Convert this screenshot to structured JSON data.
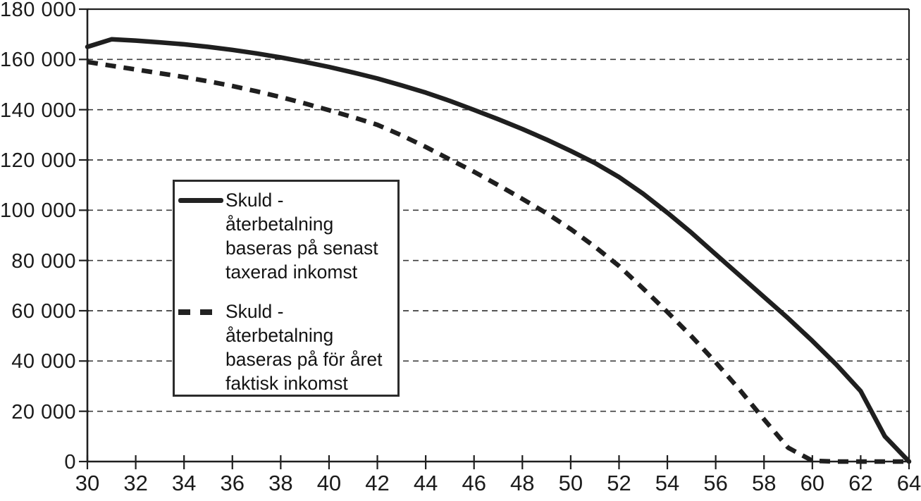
{
  "chart_data": {
    "type": "line",
    "title": "",
    "xlabel": "",
    "ylabel": "",
    "xlim": [
      30,
      64
    ],
    "ylim": [
      0,
      180000
    ],
    "x": [
      30,
      31,
      32,
      33,
      34,
      35,
      36,
      37,
      38,
      39,
      40,
      41,
      42,
      43,
      44,
      45,
      46,
      47,
      48,
      49,
      50,
      51,
      52,
      53,
      54,
      55,
      56,
      57,
      58,
      59,
      60,
      61,
      62,
      63,
      64
    ],
    "series": [
      {
        "name": "Skuld - återbetalning baseras på senast taxerad inkomst",
        "line_style": "solid",
        "color": "#1f1f1f",
        "values": [
          165000,
          168000,
          167500,
          166800,
          166000,
          165000,
          163800,
          162400,
          160800,
          159000,
          157000,
          154800,
          152400,
          149700,
          146800,
          143500,
          139900,
          136200,
          132300,
          128100,
          123600,
          118800,
          113200,
          106500,
          99000,
          91000,
          82500,
          74000,
          65500,
          57000,
          48000,
          38500,
          28000,
          10000,
          0
        ]
      },
      {
        "name": "Skuld - återbetalning baseras på för året faktisk inkomst",
        "line_style": "dashed",
        "color": "#1f1f1f",
        "values": [
          159000,
          157500,
          156000,
          154500,
          153000,
          151300,
          149400,
          147300,
          145000,
          142500,
          139800,
          137000,
          134000,
          129800,
          125200,
          120200,
          115300,
          110000,
          104500,
          98800,
          92500,
          85500,
          77800,
          68800,
          59500,
          49800,
          39500,
          28500,
          16800,
          5500,
          300,
          0,
          0,
          0,
          0
        ]
      }
    ],
    "x_ticks": [
      30,
      32,
      34,
      36,
      38,
      40,
      42,
      44,
      46,
      48,
      50,
      52,
      54,
      56,
      58,
      60,
      62,
      64
    ],
    "y_ticks": [
      0,
      20000,
      40000,
      60000,
      80000,
      100000,
      120000,
      140000,
      160000,
      180000
    ],
    "y_tick_labels": [
      "0",
      "20 000",
      "40 000",
      "60 000",
      "80 000",
      "100 000",
      "120 000",
      "140 000",
      "160 000",
      "180 000"
    ],
    "grid": {
      "horizontal": true,
      "vertical": false,
      "style": "dashed"
    },
    "legend": {
      "position": "inside-upper-left",
      "items": [
        {
          "marker": "solid-line",
          "lines": [
            "Skuld -",
            "återbetalning",
            "baseras på senast",
            "taxerad inkomst"
          ]
        },
        {
          "marker": "dashed-line",
          "lines": [
            "Skuld -",
            "återbetalning",
            "baseras på för året",
            "faktisk inkomst"
          ]
        }
      ]
    },
    "colors": {
      "ink": "#1f1f1f",
      "grid": "#3d3d3d",
      "background": "#ffffff"
    }
  }
}
